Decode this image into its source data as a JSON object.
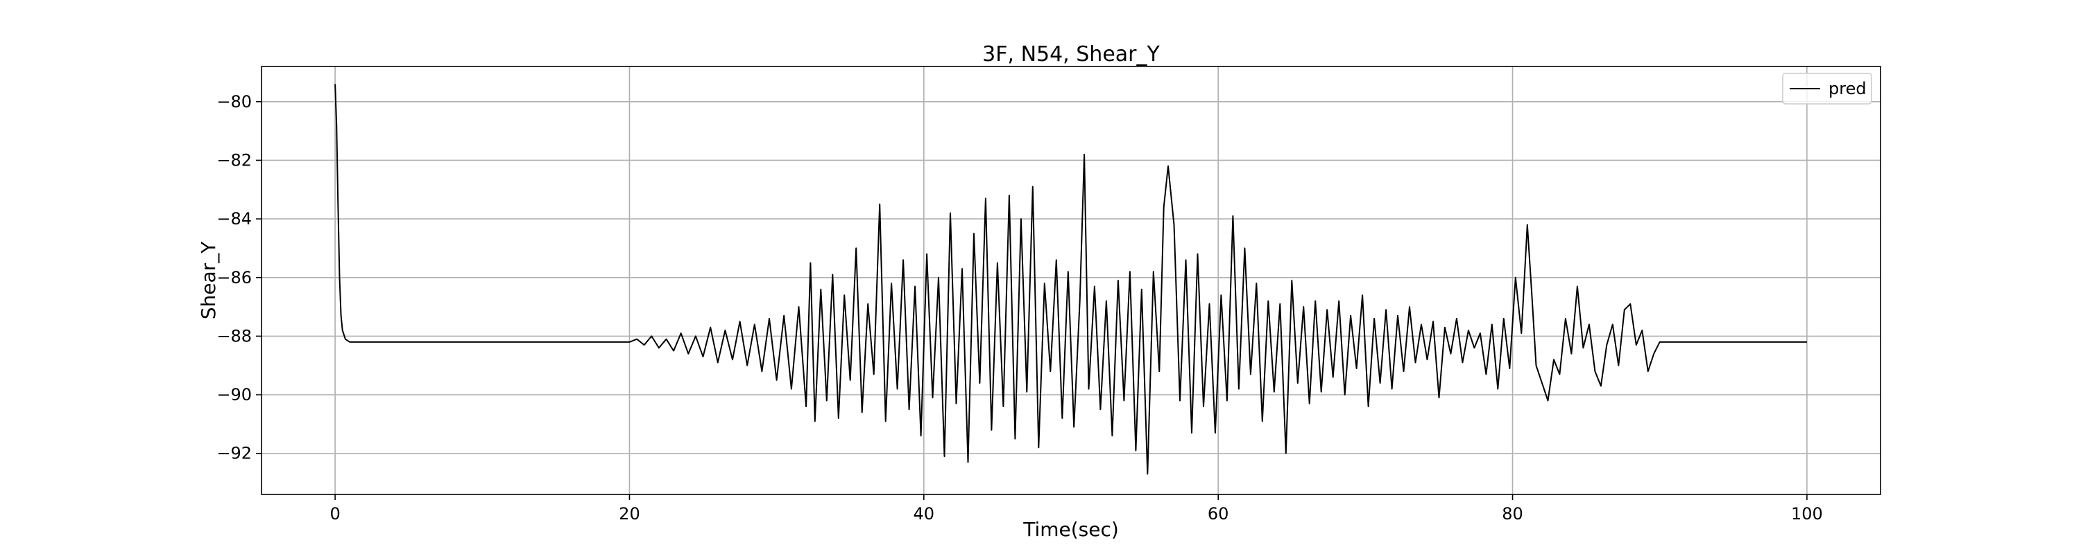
{
  "chart_data": {
    "type": "line",
    "title": "3F, N54, Shear_Y",
    "xlabel": "Time(sec)",
    "ylabel": "Shear_Y",
    "xlim": [
      -5,
      105
    ],
    "ylim": [
      -93.4,
      -78.8
    ],
    "xticks": [
      0,
      20,
      40,
      60,
      80,
      100
    ],
    "yticks": [
      -92,
      -90,
      -88,
      -86,
      -84,
      -82,
      -80
    ],
    "grid": true,
    "legend": {
      "position": "top-right",
      "entries": [
        "pred"
      ]
    },
    "series": [
      {
        "name": "pred",
        "color": "#000000",
        "x": [
          0,
          0.1,
          0.2,
          0.3,
          0.4,
          0.5,
          0.7,
          1,
          2,
          4,
          6,
          8,
          10,
          12,
          14,
          16,
          18,
          20,
          20.5,
          21,
          21.5,
          22,
          22.5,
          23,
          23.5,
          24,
          24.5,
          25,
          25.5,
          26,
          26.5,
          27,
          27.5,
          28,
          28.5,
          29,
          29.5,
          30,
          30.5,
          31,
          31.5,
          32,
          32.3,
          32.6,
          33,
          33.4,
          33.8,
          34.2,
          34.6,
          35,
          35.4,
          35.8,
          36.2,
          36.6,
          37,
          37.4,
          37.8,
          38.2,
          38.6,
          39,
          39.4,
          39.8,
          40.2,
          40.6,
          41,
          41.4,
          41.8,
          42.2,
          42.6,
          43,
          43.4,
          43.8,
          44.2,
          44.6,
          45,
          45.4,
          45.8,
          46.2,
          46.6,
          47,
          47.4,
          47.8,
          48.2,
          48.6,
          49,
          49.4,
          49.8,
          50.2,
          50.6,
          50.9,
          51.2,
          51.6,
          52,
          52.4,
          52.8,
          53.2,
          53.6,
          54,
          54.4,
          54.8,
          55.2,
          55.6,
          56,
          56.3,
          56.6,
          57,
          57.4,
          57.8,
          58.2,
          58.6,
          59,
          59.4,
          59.8,
          60.2,
          60.6,
          61,
          61.4,
          61.8,
          62.2,
          62.6,
          63,
          63.4,
          63.8,
          64.2,
          64.6,
          65,
          65.4,
          65.8,
          66.2,
          66.6,
          67,
          67.4,
          67.8,
          68.2,
          68.6,
          69,
          69.4,
          69.8,
          70.2,
          70.6,
          71,
          71.4,
          71.8,
          72.2,
          72.6,
          73,
          73.4,
          73.8,
          74.2,
          74.6,
          75,
          75.4,
          75.8,
          76.2,
          76.6,
          77,
          77.4,
          77.8,
          78.2,
          78.6,
          79,
          79.4,
          79.8,
          80.2,
          80.6,
          81,
          81.3,
          81.6,
          82,
          82.4,
          82.8,
          83.2,
          83.6,
          84,
          84.4,
          84.8,
          85.2,
          85.6,
          86,
          86.4,
          86.8,
          87.2,
          87.6,
          88,
          88.4,
          88.8,
          89.2,
          89.6,
          90,
          91,
          95,
          100
        ],
        "y": [
          -79.4,
          -80.8,
          -83.5,
          -86.0,
          -87.3,
          -87.8,
          -88.1,
          -88.2,
          -88.2,
          -88.2,
          -88.2,
          -88.2,
          -88.2,
          -88.2,
          -88.2,
          -88.2,
          -88.2,
          -88.2,
          -88.1,
          -88.3,
          -88.0,
          -88.4,
          -88.1,
          -88.5,
          -87.9,
          -88.6,
          -88.0,
          -88.7,
          -87.7,
          -88.9,
          -87.8,
          -88.8,
          -87.5,
          -89.0,
          -87.6,
          -89.2,
          -87.4,
          -89.5,
          -87.3,
          -89.8,
          -87.0,
          -90.4,
          -85.5,
          -90.9,
          -86.4,
          -90.2,
          -85.9,
          -90.8,
          -86.6,
          -89.5,
          -85.0,
          -90.6,
          -86.9,
          -89.3,
          -83.5,
          -90.9,
          -86.2,
          -89.8,
          -85.4,
          -90.5,
          -86.3,
          -91.4,
          -85.2,
          -90.1,
          -86.0,
          -92.1,
          -83.8,
          -90.3,
          -85.7,
          -92.3,
          -84.5,
          -89.6,
          -83.3,
          -91.2,
          -85.5,
          -90.4,
          -83.2,
          -91.5,
          -84.0,
          -89.9,
          -82.9,
          -91.8,
          -86.2,
          -89.2,
          -85.4,
          -90.8,
          -85.8,
          -91.1,
          -86.8,
          -81.8,
          -89.8,
          -86.3,
          -90.5,
          -86.8,
          -91.4,
          -86.1,
          -90.2,
          -85.8,
          -91.9,
          -86.4,
          -92.7,
          -85.8,
          -89.2,
          -83.6,
          -82.2,
          -84.2,
          -90.2,
          -85.4,
          -91.3,
          -85.2,
          -90.4,
          -86.9,
          -91.3,
          -86.6,
          -90.2,
          -83.9,
          -89.8,
          -85.0,
          -89.3,
          -86.2,
          -90.9,
          -86.8,
          -89.9,
          -86.9,
          -92.0,
          -86.1,
          -89.6,
          -87.0,
          -90.3,
          -86.8,
          -89.9,
          -87.1,
          -89.4,
          -86.8,
          -90.0,
          -87.3,
          -89.1,
          -86.6,
          -90.4,
          -87.4,
          -89.6,
          -87.1,
          -89.8,
          -87.3,
          -89.2,
          -87.0,
          -88.9,
          -87.6,
          -88.8,
          -87.5,
          -90.1,
          -87.7,
          -88.6,
          -87.4,
          -88.9,
          -87.8,
          -88.4,
          -87.9,
          -89.3,
          -87.6,
          -89.8,
          -87.4,
          -89.1,
          -86.0,
          -87.9,
          -84.2,
          -86.5,
          -89.0,
          -89.6,
          -90.2,
          -88.8,
          -89.3,
          -87.4,
          -88.6,
          -86.3,
          -88.4,
          -87.6,
          -89.2,
          -89.7,
          -88.3,
          -87.6,
          -89.0,
          -87.1,
          -86.9,
          -88.3,
          -87.8,
          -89.2,
          -88.6,
          -88.2,
          -88.2,
          -88.2,
          -88.2
        ]
      }
    ]
  }
}
